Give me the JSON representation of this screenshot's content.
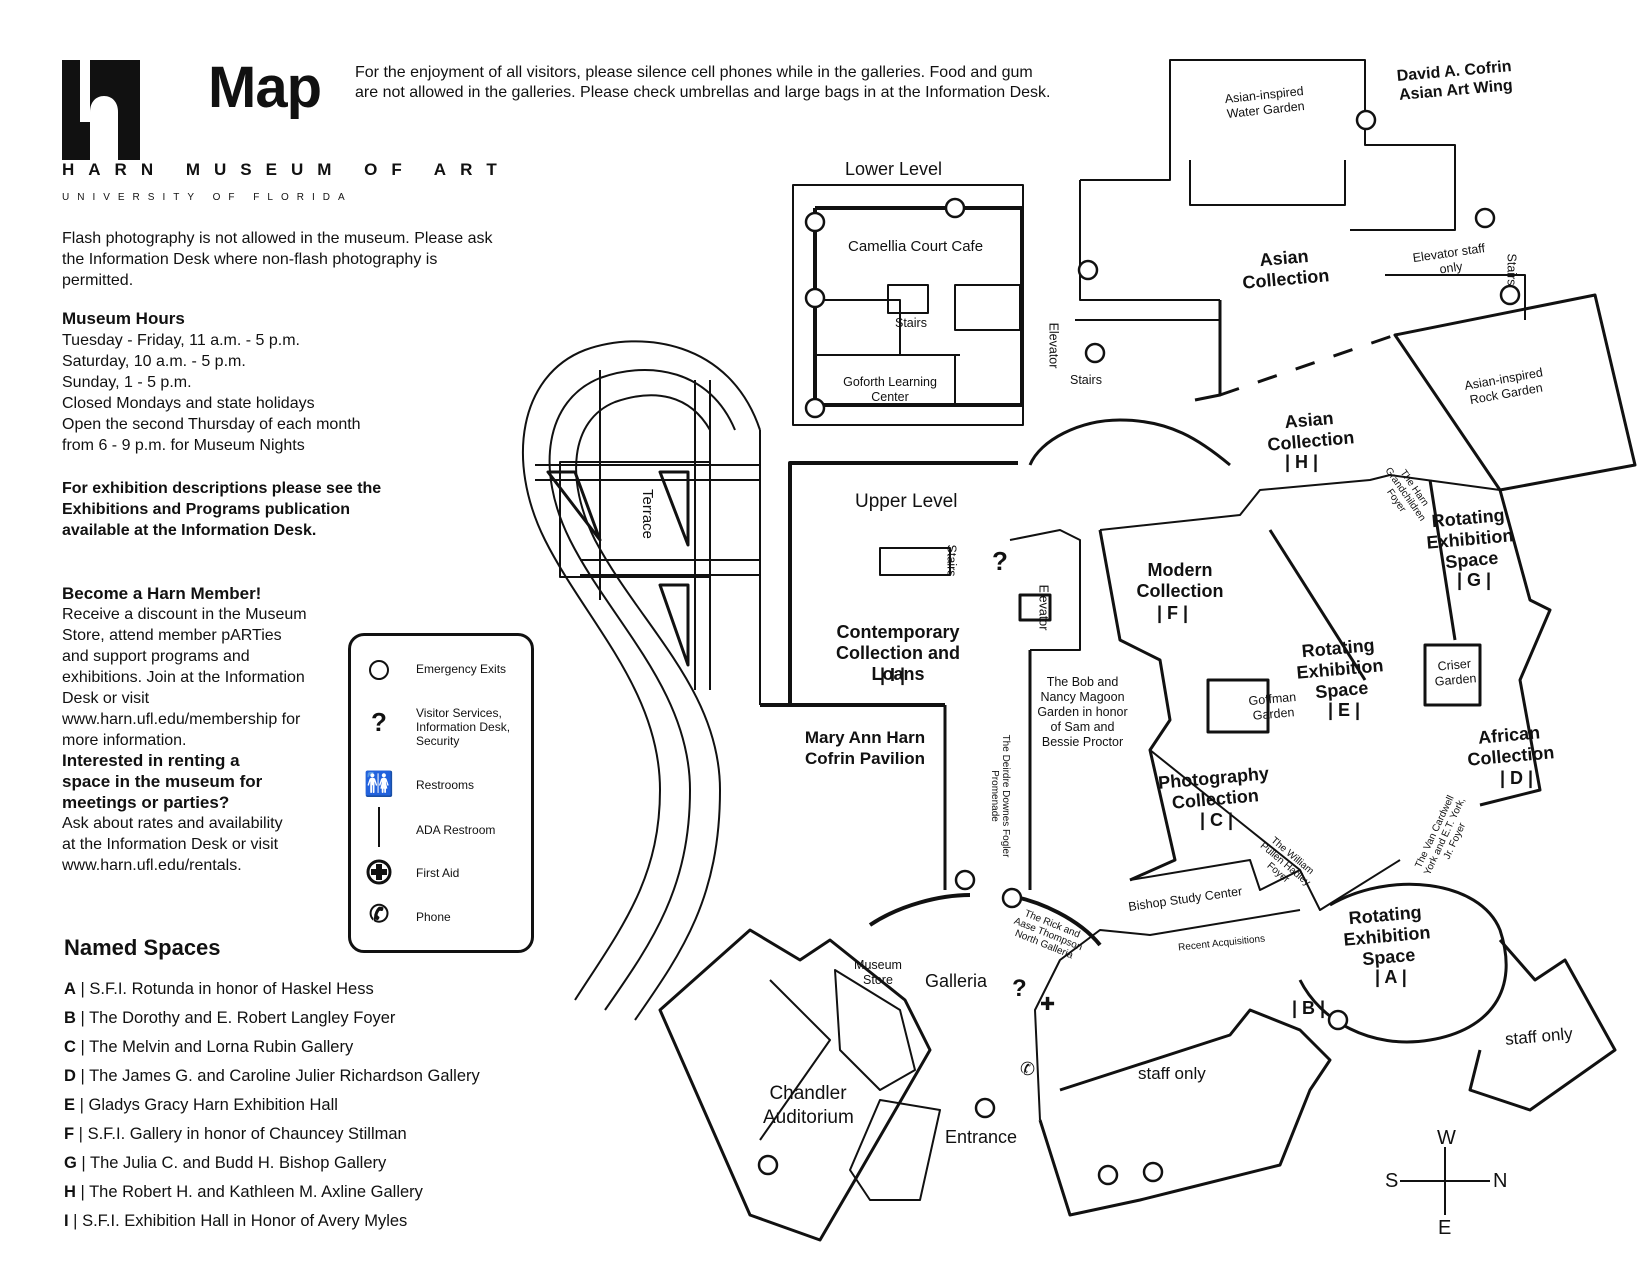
{
  "header": {
    "title": "Map",
    "museum_name": "HARN MUSEUM OF ART",
    "university": "UNIVERSITY OF FLORIDA",
    "notice": "For the enjoyment of all visitors, please silence cell phones while in the galleries. Food and gum are not allowed in the galleries. Please check umbrellas and large bags in at the Information Desk."
  },
  "info": {
    "photo_note": "Flash photography is not allowed in the museum. Please ask the Information Desk where non-flash photography is permitted.",
    "hours_title": "Museum Hours",
    "hours": [
      "Tuesday - Friday, 11 a.m. - 5 p.m.",
      "Saturday, 10 a.m. - 5 p.m.",
      "Sunday, 1 - 5 p.m.",
      "Closed Mondays and state holidays",
      "Open the second Thursday of each month",
      "from 6 - 9 p.m. for Museum Nights"
    ],
    "exhibition_note": "For exhibition descriptions please see the Exhibitions and Programs publication available at the Information Desk.",
    "member_title": "Become a Harn Member!",
    "member_text": "Receive a discount in the Museum Store, attend member pARTies and support programs and exhibitions. Join at the Information Desk or visit www.harn.ufl.edu/membership for more information.",
    "rent_title": "Interested in renting a space in the museum for meetings or parties?",
    "rent_text": "Ask about rates and availability at the Information Desk or visit www.harn.ufl.edu/rentals."
  },
  "legend": [
    {
      "icon": "emergency-exit-icon",
      "label": "Emergency Exits"
    },
    {
      "icon": "visitor-services-icon",
      "label": "Visitor Services, Information Desk, Security"
    },
    {
      "icon": "restroom-icon",
      "label": "Restrooms"
    },
    {
      "icon": "ada-restroom-icon",
      "label": "ADA Restroom"
    },
    {
      "icon": "first-aid-icon",
      "label": "First Aid"
    },
    {
      "icon": "phone-icon",
      "label": "Phone"
    }
  ],
  "named_spaces": {
    "title": "Named Spaces",
    "items": [
      {
        "letter": "A",
        "name": "S.F.I. Rotunda in honor of Haskel Hess"
      },
      {
        "letter": "B",
        "name": "The Dorothy and E. Robert Langley Foyer"
      },
      {
        "letter": "C",
        "name": "The Melvin and Lorna Rubin Gallery"
      },
      {
        "letter": "D",
        "name": "The James G. and Caroline Julier Richardson Gallery"
      },
      {
        "letter": "E",
        "name": "Gladys Gracy Harn Exhibition Hall"
      },
      {
        "letter": "F",
        "name": "S.F.I. Gallery in honor of Chauncey Stillman"
      },
      {
        "letter": "G",
        "name": "The Julia C. and Budd H. Bishop Gallery"
      },
      {
        "letter": "H",
        "name": "The Robert H. and Kathleen M. Axline Gallery"
      },
      {
        "letter": "I",
        "name": "S.F.I. Exhibition Hall in Honor of Avery Myles"
      }
    ]
  },
  "map_labels": {
    "lower_level": "Lower Level",
    "cafe": "Camellia Court Cafe",
    "stairs": "Stairs",
    "goforth": "Goforth Learning Center",
    "elevator": "Elevator",
    "terrace": "Terrace",
    "upper_level": "Upper Level",
    "contemporary": "Contemporary Collection and Loans",
    "contemporary_code": "| I |",
    "cofrin_pavilion": "Mary Ann Harn Cofrin Pavilion",
    "promenade": "The Deirdre Downes Fogler Promenade",
    "magoon": "The Bob and Nancy Magoon Garden in honor of Sam and Bessie Proctor",
    "water_garden": "Asian-inspired Water Garden",
    "cofrin_wing": "David A. Cofrin Asian Art Wing",
    "asian_collection": "Asian Collection",
    "asian_h": "Asian Collection",
    "asian_h_code": "| H |",
    "elevator_staff": "Elevator staff only",
    "rock_garden": "Asian-inspired Rock Garden",
    "grandchildren_foyer": "The Harn Grandchildren Foyer",
    "modern": "Modern Collection",
    "modern_code": "| F |",
    "rot_g": "Rotating Exhibition Space",
    "rot_g_code": "| G |",
    "rot_e": "Rotating Exhibition Space",
    "rot_e_code": "| E |",
    "goffman": "Goffman Garden",
    "criser": "Criser Garden",
    "photography": "Photography Collection",
    "photography_code": "| C |",
    "african": "African Collection",
    "african_code": "| D |",
    "pullen_foyer": "The William Pullen Hadley Foyer",
    "york_foyer": "The Van Cardwell York and E.T. York, Jr. Foyer",
    "bishop": "Bishop Study Center",
    "recent": "Recent Acquisitions",
    "north_galleria": "The Rick and Aase Thompson North Galleria",
    "rot_a": "Rotating Exhibition Space",
    "rot_a_code": "| A |",
    "b_code": "| B |",
    "staff_only": "staff only",
    "museum_store": "Museum Store",
    "galleria": "Galleria",
    "auditorium": "Chandler Auditorium",
    "entrance": "Entrance"
  },
  "compass": {
    "w": "W",
    "s": "S",
    "n": "N",
    "e": "E"
  }
}
